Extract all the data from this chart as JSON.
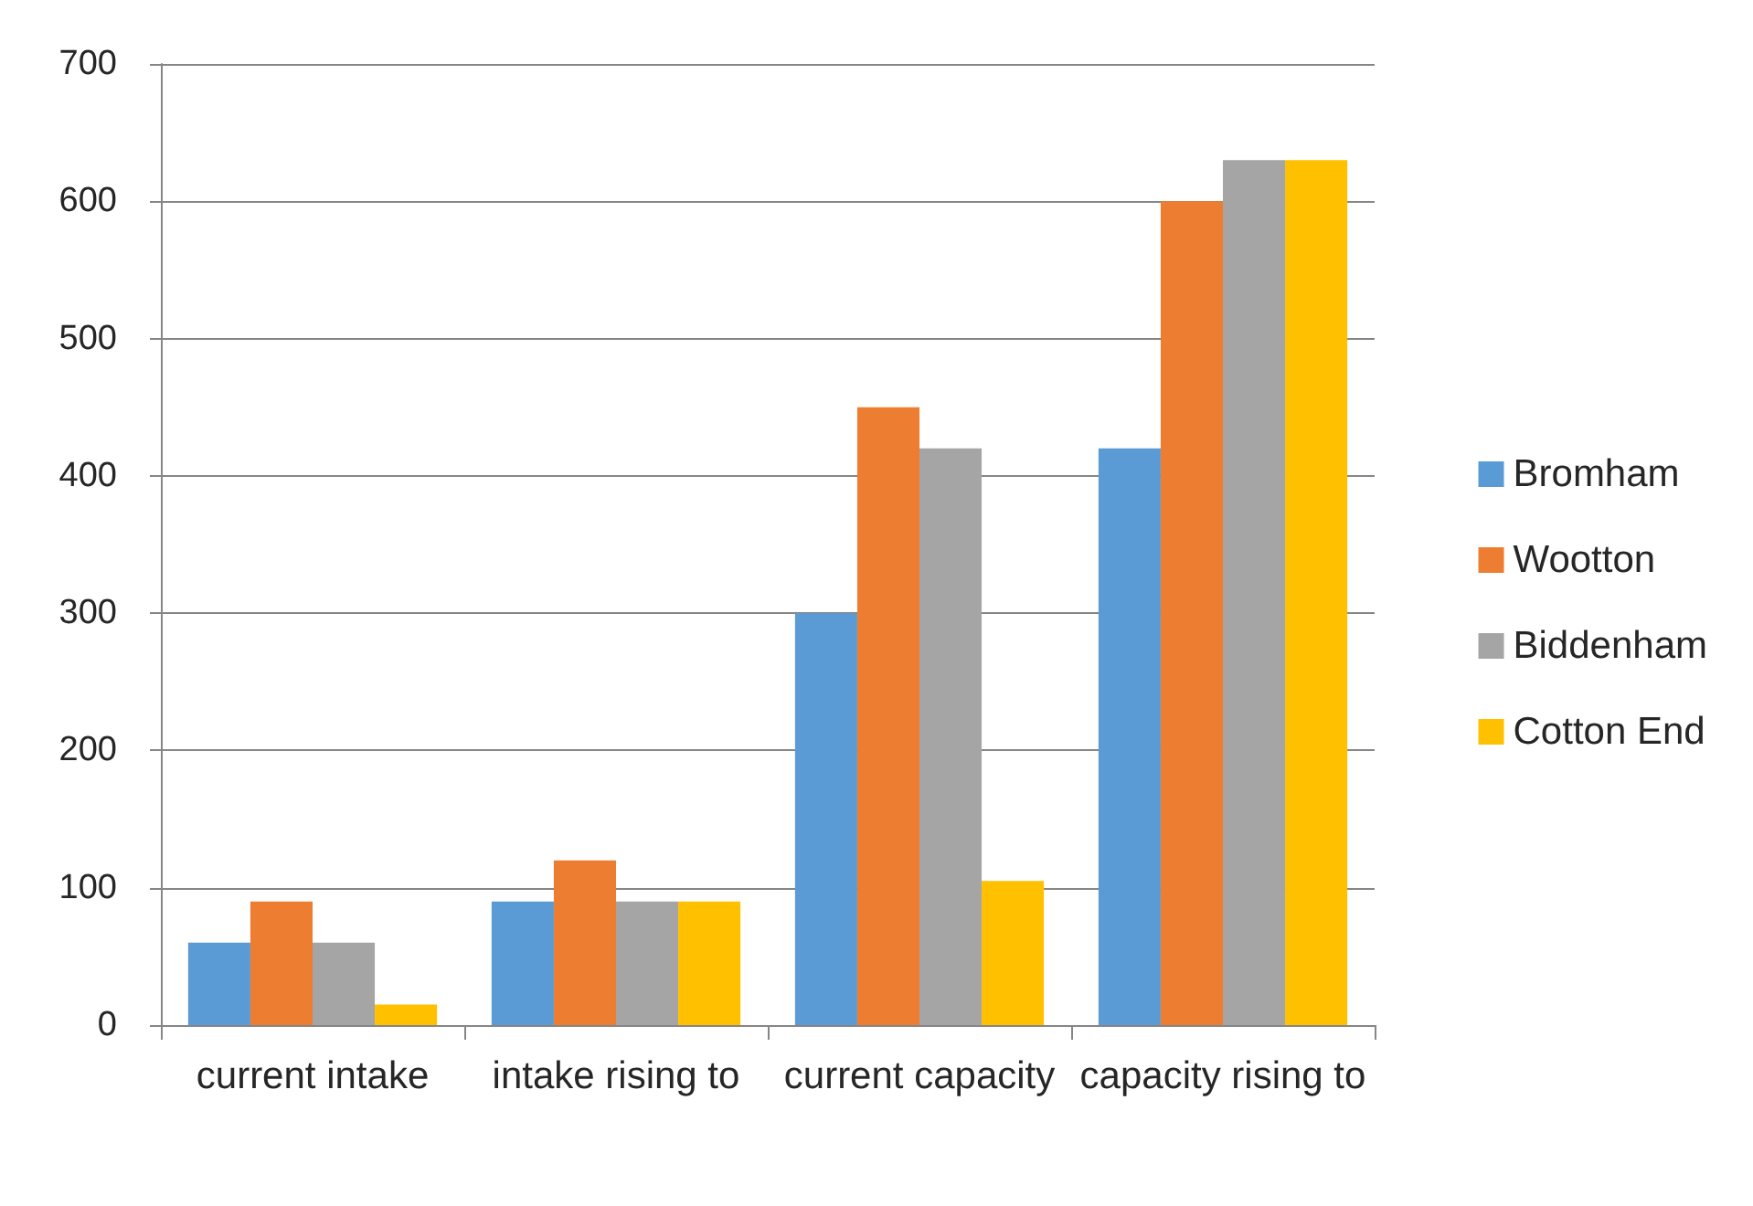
{
  "chart_data": {
    "type": "bar",
    "categories": [
      "current intake",
      "intake rising to",
      "current capacity",
      "capacity rising to"
    ],
    "series": [
      {
        "name": "Bromham",
        "color": "#5b9bd5",
        "values": [
          60,
          90,
          300,
          420
        ]
      },
      {
        "name": "Wootton",
        "color": "#ed7d31",
        "values": [
          90,
          120,
          450,
          600
        ]
      },
      {
        "name": "Biddenham",
        "color": "#a5a5a5",
        "values": [
          60,
          90,
          420,
          630
        ]
      },
      {
        "name": "Cotton End",
        "color": "#ffc000",
        "values": [
          15,
          90,
          105,
          630
        ]
      }
    ],
    "ylim": [
      0,
      700
    ],
    "yticks": [
      0,
      100,
      200,
      300,
      400,
      500,
      600,
      700
    ],
    "grid": "y",
    "legend": "right"
  }
}
